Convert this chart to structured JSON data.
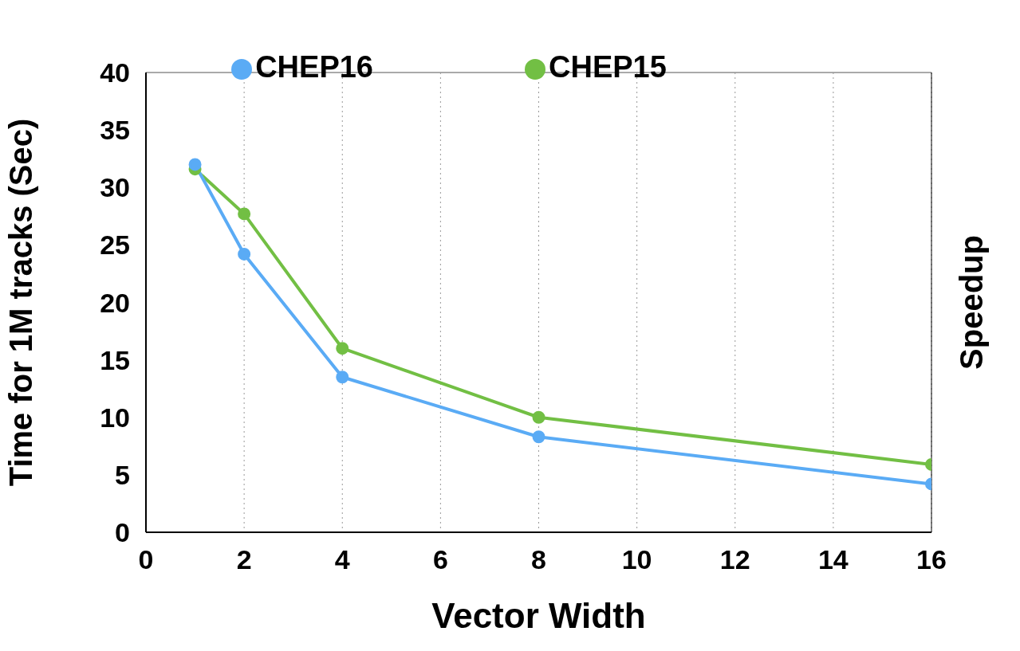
{
  "chart_data": {
    "type": "line",
    "xlabel": "Vector Width",
    "ylabel": "Time for 1M tracks (Sec)",
    "y2label": "Speedup",
    "x": [
      1,
      2,
      4,
      8,
      16
    ],
    "series": [
      {
        "name": "CHEP16",
        "color": "#5aabf5",
        "values": [
          32.0,
          24.2,
          13.5,
          8.3,
          4.2
        ]
      },
      {
        "name": "CHEP15",
        "color": "#72bf44",
        "values": [
          31.6,
          27.7,
          16.0,
          10.0,
          5.9
        ]
      }
    ],
    "xlim": [
      0,
      16
    ],
    "xticks": [
      0,
      2,
      4,
      6,
      8,
      10,
      12,
      14,
      16
    ],
    "ylim": [
      0,
      40
    ],
    "yticks": [
      0,
      5,
      10,
      15,
      20,
      25,
      30,
      35,
      40
    ],
    "grid": true,
    "legend": "top",
    "marker": "circle",
    "line_style": "solid"
  }
}
